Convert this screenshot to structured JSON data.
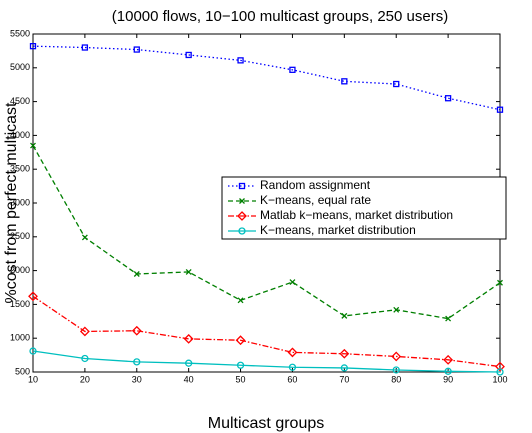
{
  "chart_data": {
    "type": "line",
    "title": "(10000 flows, 10−100 multicast groups, 250 users)",
    "x_label": "Multicast groups",
    "y_label": "%cost from perfect multicast",
    "x": [
      10,
      20,
      30,
      40,
      50,
      60,
      70,
      80,
      90,
      100
    ],
    "series": [
      {
        "name": "Random assignment",
        "color": "#0000ff",
        "linestyle": "dotted",
        "marker": "square",
        "values": [
          5320,
          5300,
          5270,
          5190,
          5110,
          4970,
          4800,
          4760,
          4550,
          4380
        ]
      },
      {
        "name": "K−means, equal rate",
        "color": "#007f00",
        "linestyle": "dashed",
        "marker": "x",
        "values": [
          3850,
          2490,
          1950,
          1980,
          1560,
          1830,
          1330,
          1420,
          1290,
          1820
        ]
      },
      {
        "name": "Matlab k−means, market distribution",
        "color": "#ff0000",
        "linestyle": "dashdot",
        "marker": "diamond",
        "values": [
          1620,
          1100,
          1110,
          990,
          970,
          790,
          770,
          730,
          680,
          580
        ]
      },
      {
        "name": "K−means, market distribution",
        "color": "#00bfbf",
        "linestyle": "solid",
        "marker": "circle",
        "values": [
          810,
          700,
          650,
          630,
          600,
          570,
          560,
          530,
          510,
          500
        ]
      }
    ],
    "xlim": [
      10,
      100
    ],
    "xticks": [
      10,
      20,
      30,
      40,
      50,
      60,
      70,
      80,
      90,
      100
    ],
    "ylim": [
      500,
      5500
    ],
    "yticks": [
      500,
      1000,
      1500,
      2000,
      2500,
      3000,
      3500,
      4000,
      4500,
      5000,
      5500
    ],
    "legend": "center right"
  }
}
